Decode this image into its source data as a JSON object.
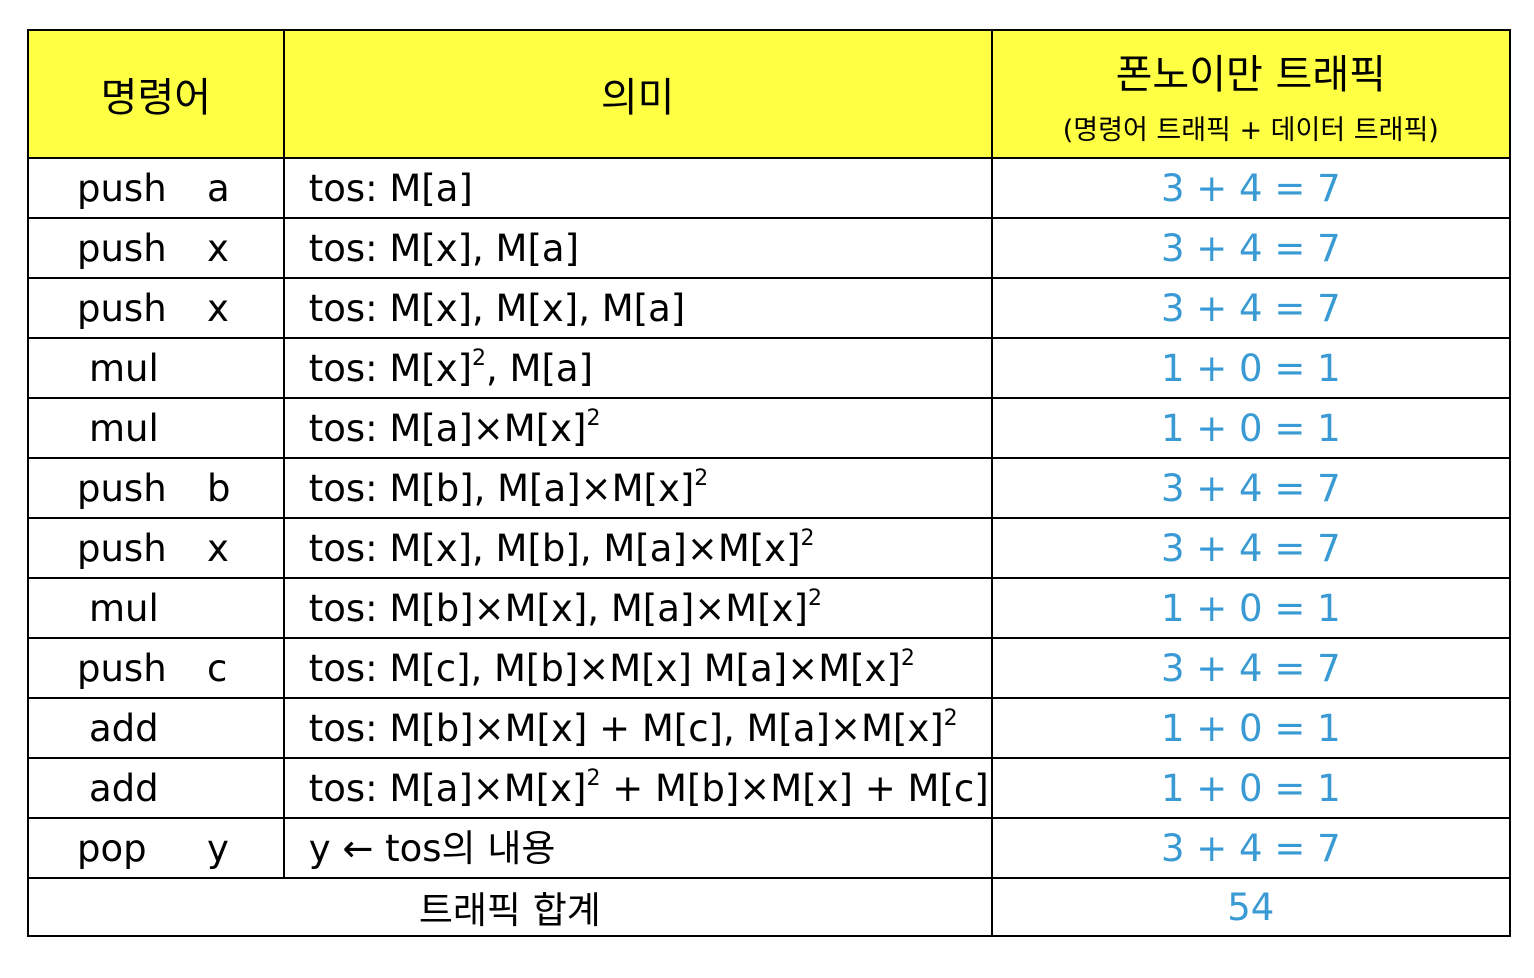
{
  "header": {
    "instruction": "명령어",
    "meaning": "의미",
    "traffic_title": "폰노이만 트래픽",
    "traffic_subtitle": "(명령어 트래픽 + 데이터 트래픽)"
  },
  "rows": [
    {
      "op": "push",
      "arg": "a",
      "meaning": [
        "tos: M[a]"
      ],
      "traffic": "3 + 4 = 7"
    },
    {
      "op": "push",
      "arg": "x",
      "meaning": [
        "tos: M[x], M[a]"
      ],
      "traffic": "3 + 4 = 7"
    },
    {
      "op": "push",
      "arg": "x",
      "meaning": [
        "tos: M[x], M[x], M[a]"
      ],
      "traffic": "3 + 4 = 7"
    },
    {
      "op": "mul",
      "arg": "",
      "meaning": [
        "tos: M[x]",
        "2",
        ", M[a]"
      ],
      "traffic": "1 + 0 = 1"
    },
    {
      "op": "mul",
      "arg": "",
      "meaning": [
        "tos: M[a]×M[x]",
        "2",
        ""
      ],
      "traffic": "1 + 0 = 1"
    },
    {
      "op": "push",
      "arg": "b",
      "meaning": [
        "tos: M[b], M[a]×M[x]",
        "2",
        ""
      ],
      "traffic": "3 + 4 = 7"
    },
    {
      "op": "push",
      "arg": "x",
      "meaning": [
        "tos: M[x], M[b], M[a]×M[x]",
        "2",
        ""
      ],
      "traffic": "3 + 4 = 7"
    },
    {
      "op": "mul",
      "arg": "",
      "meaning": [
        "tos: M[b]×M[x], M[a]×M[x]",
        "2",
        ""
      ],
      "traffic": "1 + 0 = 1"
    },
    {
      "op": "push",
      "arg": "c",
      "meaning": [
        "tos: M[c], M[b]×M[x] M[a]×M[x]",
        "2",
        ""
      ],
      "traffic": "3 + 4 = 7"
    },
    {
      "op": "add",
      "arg": "",
      "meaning": [
        "tos: M[b]×M[x] + M[c], M[a]×M[x]",
        "2",
        ""
      ],
      "traffic": "1 + 0 = 1"
    },
    {
      "op": "add",
      "arg": "",
      "meaning": [
        "tos: M[a]×M[x]",
        "2",
        " + M[b]×M[x] + M[c]"
      ],
      "traffic": "1 + 0 = 1"
    },
    {
      "op": "pop",
      "arg": "y",
      "meaning": [
        "y ← tos의 내용"
      ],
      "traffic": "3 + 4 = 7"
    }
  ],
  "total": {
    "label": "트래픽 합계",
    "value": "54"
  },
  "colors": {
    "header_bg": "#ffff44",
    "traffic_text": "#3a9ad4",
    "border": "#000000"
  }
}
